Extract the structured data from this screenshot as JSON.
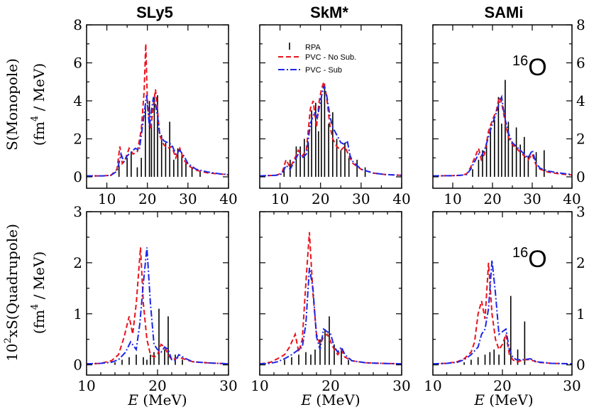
{
  "labels": {
    "columns": [
      "SLy5",
      "SkM*",
      "SAMi"
    ],
    "ylabel_top_a": "S(Monopole)",
    "ylabel_top_b": "(fm",
    "ylabel_top_sup": "4",
    "ylabel_top_c": " / MeV)",
    "ylabel_bot_a": "10",
    "ylabel_bot_sup": "2",
    "ylabel_bot_b": "xS(Quadrupole)",
    "ylabel_bot_c": "(fm",
    "ylabel_bot_sup2": "4",
    "ylabel_bot_d": " / MeV)",
    "xlabel_italic": "E",
    "xlabel_rest": " (MeV)",
    "nucleus_mass": "16",
    "nucleus_symbol": "O"
  },
  "legend": {
    "rpa": "RPA",
    "nosub": "PVC - No Sub.",
    "sub": "PVC - Sub"
  },
  "colors": {
    "nosub": "#e8121a",
    "sub": "#1b27e8",
    "rpa": "#000000"
  },
  "chart_data": [
    {
      "type": "line",
      "row": "monopole",
      "column": "SLy5",
      "xlim": [
        5,
        40
      ],
      "ylim": [
        -0.6,
        8
      ],
      "xticks": [
        10,
        20,
        30,
        40
      ],
      "yticks_left": [
        0,
        2,
        4,
        6,
        8
      ],
      "rpa_x": [
        13,
        15,
        16,
        17.5,
        18.5,
        19.5,
        20.5,
        21,
        21.7,
        22.5,
        23.5,
        24.5,
        25.5,
        26.5,
        27.5,
        28.5,
        29.5,
        31,
        33
      ],
      "rpa_y": [
        0.6,
        1,
        1.3,
        0.5,
        1,
        3.8,
        4,
        2.8,
        4.2,
        4.3,
        2.2,
        1.8,
        2.9,
        0.9,
        1.5,
        1.2,
        0.8,
        0.5,
        0.3
      ],
      "series": [
        {
          "name": "PVC - No Sub.",
          "x": [
            5,
            9,
            11,
            12.5,
            13.2,
            13.8,
            14.5,
            15.5,
            16.5,
            17.5,
            18.5,
            19.2,
            19.6,
            20,
            20.8,
            21.5,
            22,
            22.5,
            23,
            24,
            25,
            26,
            27,
            28,
            29,
            30,
            32,
            35,
            38,
            40
          ],
          "y": [
            0.05,
            0.05,
            0.08,
            0.4,
            1.6,
            0.7,
            0.9,
            1.5,
            1.2,
            1.3,
            2.5,
            4.5,
            7.0,
            4,
            2.5,
            3.8,
            4.6,
            3.5,
            2.2,
            1.7,
            1.5,
            1.6,
            1.0,
            1.5,
            0.9,
            0.6,
            0.35,
            0.2,
            0.15,
            0.1
          ]
        },
        {
          "name": "PVC - Sub",
          "x": [
            5,
            9,
            11,
            12.5,
            13.5,
            14.2,
            15,
            16,
            17,
            18,
            19,
            19.8,
            20.5,
            21,
            21.5,
            22,
            22.5,
            23,
            24,
            25,
            26,
            27,
            28,
            29,
            30,
            32,
            35,
            38,
            40
          ],
          "y": [
            0.05,
            0.05,
            0.08,
            0.3,
            1.2,
            0.8,
            1.1,
            1.3,
            1.5,
            1.4,
            3,
            4.3,
            2.6,
            3.5,
            4.2,
            3.8,
            3.2,
            2.3,
            1.9,
            1.8,
            1.7,
            1.2,
            1.4,
            1.1,
            0.7,
            0.4,
            0.25,
            0.15,
            0.12
          ]
        }
      ]
    },
    {
      "type": "line",
      "row": "monopole",
      "column": "SkM*",
      "xlim": [
        5,
        40
      ],
      "ylim": [
        -0.6,
        8
      ],
      "xticks": [
        10,
        20,
        30,
        40
      ],
      "yticks_left": [
        0,
        2,
        4,
        6,
        8
      ],
      "rpa_x": [
        11,
        12.5,
        14,
        15,
        16,
        17,
        17.8,
        18.8,
        19.5,
        20.2,
        21,
        22,
        23,
        24,
        25,
        26,
        27,
        29,
        31
      ],
      "rpa_y": [
        0.5,
        0.9,
        1.6,
        1.6,
        2.0,
        1.8,
        3.5,
        3.9,
        2.4,
        4.2,
        4.9,
        2.8,
        3.4,
        2.0,
        1.4,
        1.8,
        1.0,
        0.9,
        0.5
      ],
      "series": [
        {
          "name": "PVC - No Sub.",
          "x": [
            5,
            9,
            10.5,
            11.5,
            12.5,
            13.5,
            14.5,
            15.5,
            16.5,
            17.5,
            18.2,
            19,
            19.6,
            20.2,
            20.8,
            21.5,
            22.3,
            23,
            24,
            25,
            26,
            27,
            28,
            30,
            33,
            36,
            40
          ],
          "y": [
            0.05,
            0.08,
            0.2,
            0.9,
            0.5,
            0.9,
            1.4,
            1.1,
            1.4,
            3.6,
            4.0,
            2.6,
            3.9,
            4.6,
            5.0,
            4.2,
            2.7,
            2.0,
            1.6,
            1.4,
            1.6,
            1.1,
            0.7,
            0.4,
            0.2,
            0.12,
            0.08
          ]
        },
        {
          "name": "PVC - Sub",
          "x": [
            5,
            9,
            10.5,
            11.5,
            12.5,
            13.5,
            14.5,
            15.5,
            16.5,
            17.5,
            18.5,
            19.2,
            20,
            20.8,
            21.5,
            22.3,
            23,
            24,
            25,
            26,
            26.6,
            27.3,
            28,
            30,
            33,
            36,
            40
          ],
          "y": [
            0.05,
            0.08,
            0.15,
            0.6,
            0.4,
            0.8,
            1.2,
            1.0,
            1.2,
            2.8,
            3.4,
            3.1,
            4.0,
            4.8,
            4.3,
            3.2,
            2.6,
            2.2,
            1.8,
            1.7,
            1.9,
            1.1,
            0.8,
            0.4,
            0.2,
            0.12,
            0.08
          ]
        }
      ]
    },
    {
      "type": "line",
      "row": "monopole",
      "column": "SAMi",
      "xlim": [
        5,
        40
      ],
      "ylim": [
        -0.6,
        8
      ],
      "xticks": [
        10,
        20,
        30,
        40
      ],
      "yticks_right": [
        0,
        2,
        4,
        6,
        8
      ],
      "rpa_x": [
        15,
        16.5,
        17.5,
        18.5,
        19.5,
        20.5,
        21.5,
        22.3,
        23.2,
        24,
        25,
        26,
        27,
        28,
        29,
        31,
        33
      ],
      "rpa_y": [
        0.4,
        0.9,
        1.4,
        1.8,
        2.6,
        3.0,
        4.2,
        2.8,
        5.1,
        2.9,
        1.8,
        2.6,
        1.7,
        2.1,
        1.1,
        1.3,
        1.4
      ],
      "series": [
        {
          "name": "PVC - No Sub.",
          "x": [
            5,
            10,
            12,
            13.5,
            14.5,
            15.5,
            16.5,
            17.2,
            18,
            19,
            20,
            21,
            21.7,
            22.3,
            23,
            24,
            25,
            26,
            27,
            28,
            29,
            30,
            31,
            32,
            34,
            37,
            40
          ],
          "y": [
            0.05,
            0.06,
            0.08,
            0.15,
            0.5,
            1.0,
            1.5,
            0.9,
            1.2,
            2.4,
            3.0,
            3.5,
            4.2,
            3.9,
            3.1,
            2.1,
            1.7,
            1.5,
            1.3,
            1.1,
            0.9,
            1.2,
            0.6,
            0.4,
            0.25,
            0.15,
            0.1
          ]
        },
        {
          "name": "PVC - Sub",
          "x": [
            5,
            10,
            12,
            13.5,
            14.5,
            15.5,
            16.5,
            17.2,
            18,
            19,
            20,
            21,
            21.7,
            22.3,
            23,
            24,
            25,
            26,
            27,
            28,
            29,
            30,
            31,
            32,
            34,
            37,
            40
          ],
          "y": [
            0.05,
            0.06,
            0.08,
            0.12,
            0.4,
            0.8,
            1.2,
            1.1,
            1.4,
            2.1,
            2.8,
            3.4,
            3.9,
            4.2,
            3.2,
            2.3,
            1.8,
            1.6,
            1.4,
            1.2,
            1.0,
            1.4,
            0.7,
            0.45,
            0.3,
            0.2,
            0.12
          ]
        }
      ]
    },
    {
      "type": "line",
      "row": "quadrupole",
      "column": "SLy5",
      "xlim": [
        10,
        30
      ],
      "ylim": [
        -0.2,
        3
      ],
      "xticks": [
        10,
        20,
        30
      ],
      "yticks_left": [
        0,
        1,
        2,
        3
      ],
      "rpa_x": [
        14,
        15,
        16,
        17,
        18,
        18.5,
        19,
        19.5,
        20.2,
        21,
        21.5,
        22.5,
        23.5
      ],
      "rpa_y": [
        0.05,
        0.1,
        0.15,
        0.2,
        0.15,
        0.1,
        0.2,
        0.25,
        1.1,
        0.3,
        0.95,
        0.2,
        0.1
      ],
      "series": [
        {
          "name": "PVC - No Sub.",
          "x": [
            10,
            12,
            13.5,
            14.5,
            15.3,
            16,
            16.5,
            17,
            17.6,
            18,
            18.5,
            19,
            19.5,
            20,
            20.5,
            21,
            21.5,
            22,
            22.5,
            23,
            24,
            25,
            27,
            30
          ],
          "y": [
            0.02,
            0.03,
            0.08,
            0.2,
            0.55,
            0.95,
            0.6,
            1.2,
            2.3,
            1.2,
            0.5,
            0.2,
            0.15,
            0.2,
            0.4,
            0.35,
            0.2,
            0.1,
            0.12,
            0.15,
            0.1,
            0.06,
            0.04,
            0.02
          ]
        },
        {
          "name": "PVC - Sub",
          "x": [
            10,
            12,
            13.5,
            14.5,
            15.5,
            16.2,
            17,
            17.5,
            18,
            18.5,
            19,
            19.5,
            20,
            20.5,
            21,
            21.5,
            22,
            22.5,
            23,
            24,
            25,
            27,
            30
          ],
          "y": [
            0.02,
            0.03,
            0.05,
            0.1,
            0.25,
            0.45,
            0.3,
            0.8,
            1.6,
            2.3,
            1.2,
            0.4,
            0.3,
            0.25,
            0.35,
            0.3,
            0.1,
            0.08,
            0.2,
            0.12,
            0.06,
            0.04,
            0.02
          ]
        }
      ]
    },
    {
      "type": "line",
      "row": "quadrupole",
      "column": "SkM*",
      "xlim": [
        10,
        30
      ],
      "ylim": [
        -0.2,
        3
      ],
      "xticks": [
        10,
        20,
        30
      ],
      "yticks_left": [
        0,
        1,
        2,
        3
      ],
      "rpa_x": [
        13.5,
        14.5,
        15.5,
        16.5,
        17.2,
        17.8,
        18.5,
        19.2,
        19.8,
        20.5,
        21.5,
        22.5
      ],
      "rpa_y": [
        0.1,
        0.15,
        0.2,
        0.25,
        0.2,
        0.3,
        0.5,
        0.7,
        0.95,
        0.4,
        0.3,
        0.1
      ],
      "series": [
        {
          "name": "PVC - No Sub.",
          "x": [
            10,
            11.5,
            12.5,
            13.5,
            14.2,
            15,
            15.5,
            16,
            16.5,
            17,
            17.5,
            18,
            18.5,
            19,
            19.5,
            20,
            20.5,
            21,
            21.5,
            22,
            23,
            25,
            27,
            30
          ],
          "y": [
            0.02,
            0.05,
            0.12,
            0.2,
            0.35,
            0.6,
            0.25,
            0.5,
            1.6,
            2.6,
            1.4,
            0.6,
            0.4,
            0.55,
            0.6,
            0.45,
            0.3,
            0.2,
            0.3,
            0.15,
            0.08,
            0.04,
            0.03,
            0.02
          ]
        },
        {
          "name": "PVC - Sub",
          "x": [
            10,
            11.5,
            12.5,
            13.5,
            14.5,
            15.5,
            16,
            16.5,
            17,
            17.5,
            18,
            18.5,
            19,
            19.5,
            20,
            20.5,
            21,
            21.5,
            22,
            23,
            25,
            27,
            30
          ],
          "y": [
            0.02,
            0.03,
            0.06,
            0.12,
            0.2,
            0.3,
            0.35,
            0.8,
            1.9,
            1.5,
            0.55,
            0.3,
            0.7,
            0.65,
            0.6,
            0.35,
            0.25,
            0.35,
            0.2,
            0.08,
            0.04,
            0.03,
            0.02
          ]
        }
      ]
    },
    {
      "type": "line",
      "row": "quadrupole",
      "column": "SAMi",
      "xlim": [
        10,
        30
      ],
      "ylim": [
        -0.2,
        3
      ],
      "xticks": [
        10,
        20,
        30
      ],
      "yticks_right": [
        0,
        1,
        2,
        3
      ],
      "rpa_x": [
        14.5,
        15.5,
        16.5,
        17.5,
        18.2,
        18.8,
        19.5,
        20.3,
        21.2,
        22.2,
        23.2
      ],
      "rpa_y": [
        0.05,
        0.1,
        0.15,
        0.2,
        0.25,
        0.3,
        0.2,
        0.5,
        1.35,
        0.3,
        0.85
      ],
      "series": [
        {
          "name": "PVC - No Sub.",
          "x": [
            10,
            12,
            13.5,
            14.5,
            15.5,
            16,
            16.5,
            17,
            17.5,
            18,
            18.5,
            19,
            19.5,
            20,
            20.5,
            21,
            21.5,
            22,
            23,
            24,
            25,
            27,
            30
          ],
          "y": [
            0.02,
            0.03,
            0.06,
            0.12,
            0.25,
            0.45,
            1.0,
            1.25,
            0.9,
            2.0,
            1.0,
            0.5,
            0.3,
            0.4,
            0.6,
            0.2,
            0.1,
            0.05,
            0.1,
            0.1,
            0.05,
            0.03,
            0.02
          ]
        },
        {
          "name": "PVC - Sub",
          "x": [
            10,
            12,
            13.5,
            14.5,
            15.5,
            16.5,
            17,
            17.5,
            18,
            18.5,
            19,
            19.5,
            20,
            20.5,
            21,
            21.5,
            22,
            23,
            24,
            25,
            27,
            30
          ],
          "y": [
            0.02,
            0.03,
            0.05,
            0.1,
            0.2,
            0.35,
            0.6,
            0.7,
            1.1,
            2.05,
            1.4,
            0.6,
            0.65,
            0.7,
            0.3,
            0.15,
            0.1,
            0.1,
            0.12,
            0.06,
            0.03,
            0.02
          ]
        }
      ]
    }
  ]
}
